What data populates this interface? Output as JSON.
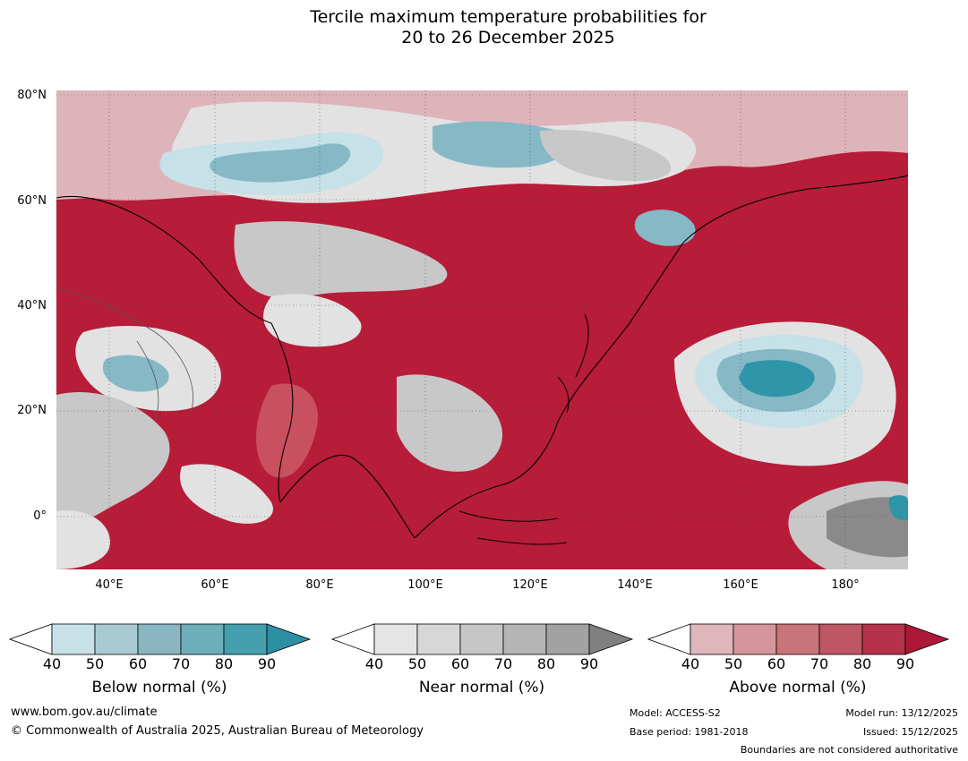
{
  "title": {
    "line1": "Tercile maximum temperature probabilities for",
    "line2": "20 to 26 December 2025"
  },
  "map": {
    "lat_labels": [
      "80°N",
      "60°N",
      "40°N",
      "20°N",
      "0°"
    ],
    "lon_labels": [
      "40°E",
      "60°E",
      "80°E",
      "100°E",
      "120°E",
      "140°E",
      "160°E",
      "180°"
    ],
    "colors": {
      "above_dark": "#b71c38",
      "above_mid": "#c9505f",
      "above_light": "#deb4bb",
      "near_light": "#e2e2e2",
      "near_mid": "#c8c8c8",
      "near_dark": "#8a8a8a",
      "below_light": "#c6e1e8",
      "below_mid": "#86b8c6",
      "below_dark": "#2f95a8"
    }
  },
  "colorbars": {
    "below": {
      "label": "Below normal (%)",
      "ticks": [
        "40",
        "50",
        "60",
        "70",
        "80",
        "90"
      ],
      "colors": [
        "#c6e1e8",
        "#a9cad2",
        "#8ab6c2",
        "#6daeb9",
        "#449fae",
        "#2c8fa3"
      ]
    },
    "near": {
      "label": "Near normal (%)",
      "ticks": [
        "40",
        "50",
        "60",
        "70",
        "80",
        "90"
      ],
      "colors": [
        "#e5e5e5",
        "#d7d7d7",
        "#c6c6c6",
        "#b5b5b5",
        "#a2a2a2",
        "#808080"
      ]
    },
    "above": {
      "label": "Above normal (%)",
      "ticks": [
        "40",
        "50",
        "60",
        "70",
        "80",
        "90"
      ],
      "colors": [
        "#dfb6bc",
        "#d4969c",
        "#c97479",
        "#be5663",
        "#b5324a",
        "#ad1836"
      ]
    }
  },
  "footer": {
    "website": "www.bom.gov.au/climate",
    "copyright": "© Commonwealth of Australia 2025, Australian Bureau of Meteorology",
    "model": "Model: ACCESS-S2",
    "base_period": "Base period: 1981-2018",
    "model_run": "Model run: 13/12/2025",
    "issued": "Issued: 15/12/2025",
    "disclaimer": "Boundaries are not considered authoritative"
  }
}
